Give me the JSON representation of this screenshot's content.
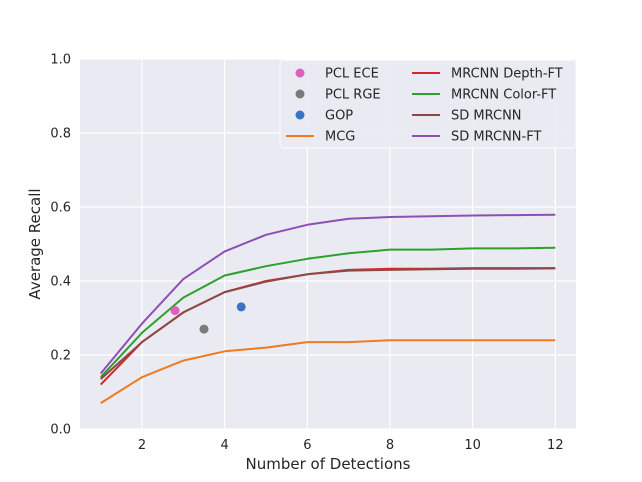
{
  "chart_data": {
    "type": "line",
    "title": "",
    "xlabel": "Number of Detections",
    "ylabel": "Average Recall",
    "xlim": [
      0.5,
      12.5
    ],
    "ylim": [
      0.0,
      1.0
    ],
    "xticks": [
      2,
      4,
      6,
      8,
      10,
      12
    ],
    "yticks": [
      0.0,
      0.2,
      0.4,
      0.6,
      0.8,
      1.0
    ],
    "ytick_labels": [
      "0.0",
      "0.2",
      "0.4",
      "0.6",
      "0.8",
      "1.0"
    ],
    "grid": true,
    "legend_placement": "top-right",
    "legend_columns": 2,
    "background": "#eaeaf2",
    "points": [
      {
        "name": "PCL ECE",
        "x": 2.8,
        "y": 0.32,
        "color": "#dd5fbf"
      },
      {
        "name": "PCL RGE",
        "x": 3.5,
        "y": 0.27,
        "color": "#7a7a7a"
      },
      {
        "name": "GOP",
        "x": 4.4,
        "y": 0.33,
        "color": "#3a75c4"
      }
    ],
    "series": [
      {
        "name": "MCG",
        "color": "#f07a1c",
        "x": [
          1,
          2,
          3,
          4,
          5,
          6,
          7,
          8,
          9,
          10,
          11,
          12
        ],
        "values": [
          0.07,
          0.14,
          0.185,
          0.21,
          0.22,
          0.235,
          0.235,
          0.24,
          0.24,
          0.24,
          0.24,
          0.24
        ]
      },
      {
        "name": "MRCNN Depth-FT",
        "color": "#d62728",
        "x": [
          1,
          2,
          3,
          4,
          5,
          6,
          7,
          8,
          9,
          10,
          11,
          12
        ],
        "values": [
          0.12,
          0.235,
          0.315,
          0.37,
          0.4,
          0.418,
          0.43,
          0.433,
          0.433,
          0.435,
          0.435,
          0.435
        ]
      },
      {
        "name": "MRCNN Color-FT",
        "color": "#2ca02c",
        "x": [
          1,
          2,
          3,
          4,
          5,
          6,
          7,
          8,
          9,
          10,
          11,
          12
        ],
        "values": [
          0.14,
          0.26,
          0.355,
          0.415,
          0.44,
          0.46,
          0.475,
          0.485,
          0.485,
          0.488,
          0.488,
          0.49
        ]
      },
      {
        "name": "SD MRCNN",
        "color": "#8c4a46",
        "x": [
          1,
          2,
          3,
          4,
          5,
          6,
          7,
          8,
          9,
          10,
          11,
          12
        ],
        "values": [
          0.135,
          0.235,
          0.315,
          0.37,
          0.398,
          0.418,
          0.428,
          0.43,
          0.432,
          0.433,
          0.433,
          0.434
        ]
      },
      {
        "name": "SD MRCNN-FT",
        "color": "#8e4fb4",
        "x": [
          1,
          2,
          3,
          4,
          5,
          6,
          7,
          8,
          9,
          10,
          11,
          12
        ],
        "values": [
          0.15,
          0.285,
          0.405,
          0.48,
          0.525,
          0.552,
          0.568,
          0.573,
          0.575,
          0.577,
          0.578,
          0.579
        ]
      }
    ]
  }
}
